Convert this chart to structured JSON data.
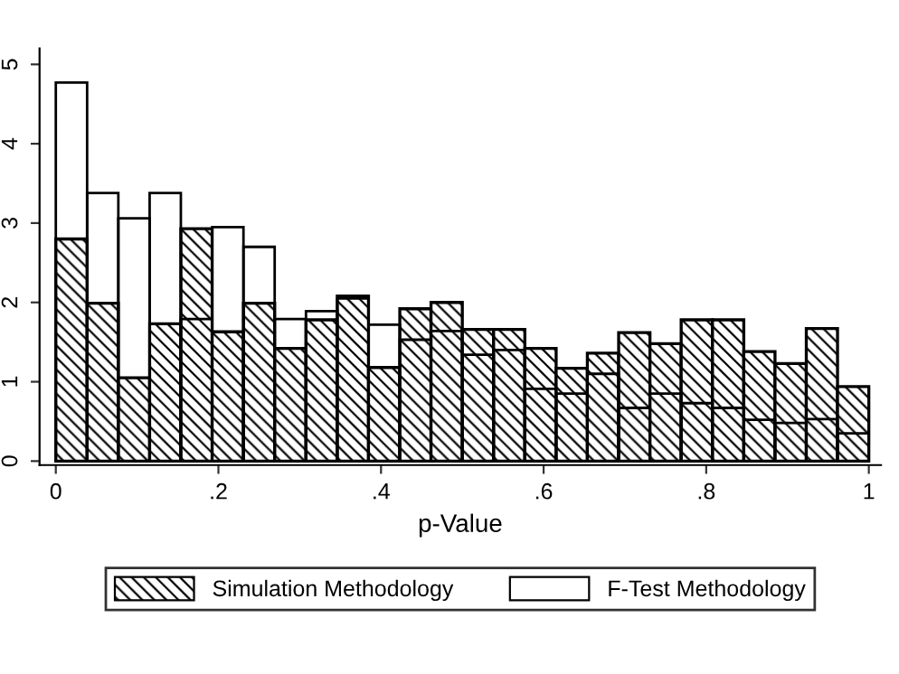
{
  "chart_data": {
    "type": "histogram",
    "xlabel": "p-Value",
    "bins": [
      0,
      0.0385,
      0.0769,
      0.1154,
      0.1538,
      0.1923,
      0.2308,
      0.2692,
      0.3077,
      0.3462,
      0.3846,
      0.4231,
      0.4615,
      0.5,
      0.5385,
      0.5769,
      0.6154,
      0.6538,
      0.6923,
      0.7308,
      0.7692,
      0.8077,
      0.8462,
      0.8846,
      0.9231,
      0.9615,
      1
    ],
    "series": [
      {
        "name": "Simulation Methodology",
        "color": "#000000",
        "values": [
          2.8,
          1.99,
          1.05,
          1.73,
          2.93,
          1.63,
          1.99,
          1.42,
          1.78,
          2.08,
          1.18,
          1.92,
          2.0,
          1.66,
          1.66,
          1.42,
          1.17,
          1.36,
          1.62,
          1.48,
          1.78,
          1.78,
          1.38,
          1.23,
          1.67,
          0.94
        ]
      },
      {
        "name": "F-Test Methodology",
        "color": "#000000",
        "values": [
          4.77,
          3.38,
          3.06,
          3.38,
          1.79,
          2.95,
          2.7,
          1.79,
          1.89,
          2.05,
          1.72,
          1.53,
          1.64,
          1.34,
          1.4,
          0.91,
          0.85,
          1.1,
          0.67,
          0.85,
          0.73,
          0.67,
          0.52,
          0.48,
          0.53,
          0.35
        ]
      }
    ],
    "xlim": [
      -0.02,
      1.015
    ],
    "xticks": [
      0,
      {
        "value": 0.2,
        "label": ".2"
      },
      {
        "value": 0.4,
        "label": ".4"
      },
      {
        "value": 0.6,
        "label": ".6"
      },
      {
        "value": 0.8,
        "label": ".8"
      },
      1
    ],
    "ylim": [
      -0.05,
      5.2
    ],
    "yticks": [
      0,
      1,
      2,
      3,
      4,
      5
    ],
    "grid": false,
    "legend": "bottom"
  }
}
